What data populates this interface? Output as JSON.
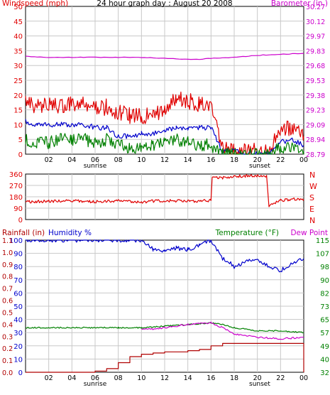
{
  "title": "24 hour graph day : August 20 2008",
  "colors": {
    "wind": "#e00000",
    "wind_avg": "#0000cc",
    "wind_low": "#008000",
    "baro": "#cc00cc",
    "dir": "#e00000",
    "rain": "#b00000",
    "humidity": "#0000cc",
    "temperature": "#008000",
    "dewpoint": "#cc00cc",
    "grid": "#c8c8c8",
    "frame": "#000000"
  },
  "chart_data": [
    {
      "type": "line",
      "id": "wind-baro",
      "title": "24 hour graph day : August 20 2008",
      "left_label": "Windspeed (mph)",
      "right_label": "Barometer (in.)",
      "left_ticks": [
        "50",
        "45",
        "40",
        "35",
        "30",
        "25",
        "20",
        "15",
        "10",
        "5",
        "0"
      ],
      "right_ticks": [
        "30.27",
        "30.12",
        "29.97",
        "29.83",
        "29.68",
        "29.53",
        "29.38",
        "29.23",
        "29.09",
        "28.94",
        "28.79"
      ],
      "x_ticks": [
        "02",
        "04",
        "06",
        "08",
        "10",
        "12",
        "14",
        "16",
        "18",
        "20",
        "22",
        "00"
      ],
      "sun_labels": [
        "sunrise",
        "sunset"
      ],
      "ylim_left": [
        0,
        50
      ],
      "ylim_right": [
        28.79,
        30.27
      ],
      "x_range_hours": [
        0,
        24
      ],
      "series": [
        {
          "id": "barometer",
          "axis": "right",
          "x": [
            0,
            2,
            4,
            6,
            8,
            10,
            12,
            14,
            15,
            16,
            18,
            20,
            22,
            24
          ],
          "y": [
            29.77,
            29.76,
            29.76,
            29.76,
            29.76,
            29.76,
            29.75,
            29.74,
            29.74,
            29.75,
            29.76,
            29.78,
            29.79,
            29.8
          ]
        },
        {
          "id": "windspeed",
          "axis": "left",
          "x": [
            0,
            1,
            2,
            3,
            4,
            5,
            6,
            7,
            8,
            9,
            10,
            11,
            12,
            13,
            14,
            15,
            16,
            17,
            18,
            19,
            20,
            21,
            22,
            23,
            24
          ],
          "y": [
            17,
            16,
            17,
            16,
            17,
            17,
            15,
            16,
            14,
            13,
            13,
            13,
            15,
            19,
            18,
            17,
            16,
            2,
            1,
            1,
            1,
            1,
            8,
            9,
            6
          ]
        },
        {
          "id": "wind_average",
          "axis": "left",
          "x": [
            0,
            1,
            2,
            3,
            4,
            5,
            6,
            7,
            8,
            9,
            10,
            11,
            12,
            13,
            14,
            15,
            16,
            17,
            18,
            19,
            20,
            21,
            22,
            23,
            24
          ],
          "y": [
            11,
            10,
            10,
            10,
            10,
            10,
            9,
            9,
            6,
            6,
            7,
            7,
            8,
            9,
            9,
            9,
            9,
            1,
            1,
            0,
            0,
            0,
            4,
            5,
            3
          ]
        },
        {
          "id": "wind_low",
          "axis": "left",
          "x": [
            0,
            1,
            2,
            3,
            4,
            5,
            6,
            7,
            8,
            9,
            10,
            11,
            12,
            13,
            14,
            15,
            16,
            17,
            18,
            19,
            20,
            21,
            22,
            23,
            24
          ],
          "y": [
            5,
            4,
            4,
            5,
            5,
            5,
            4,
            5,
            3,
            2,
            3,
            3,
            4,
            5,
            4,
            3,
            3,
            0,
            0,
            0,
            0,
            0,
            2,
            2,
            1
          ]
        }
      ]
    },
    {
      "type": "line",
      "id": "direction",
      "y_ticks": [
        "360",
        "270",
        "180",
        "90",
        "0"
      ],
      "compass": [
        "N",
        "W",
        "S",
        "E",
        "N"
      ],
      "ylim": [
        0,
        360
      ],
      "series": [
        {
          "id": "wind_direction",
          "x": [
            0,
            2,
            4,
            6,
            8,
            10,
            12,
            14,
            16,
            16.1,
            17,
            18,
            19,
            20,
            20.8,
            21,
            22,
            23,
            24
          ],
          "y": [
            140,
            145,
            150,
            140,
            150,
            140,
            150,
            145,
            150,
            340,
            330,
            340,
            345,
            345,
            345,
            110,
            150,
            160,
            160
          ]
        }
      ]
    },
    {
      "type": "line",
      "id": "rain-hum-temp",
      "left_label": "Rainfall (in)",
      "humidity_label": "Humidity %",
      "temp_label": "Temperature (°F)",
      "dew_label": "Dew Point",
      "rain_ticks": [
        "1.1",
        "1.0",
        "0.9",
        "0.8",
        "0.7",
        "0.6",
        "0.5",
        "0.4",
        "0.3",
        "0.2",
        "0.1",
        "0.0"
      ],
      "hum_ticks": [
        "100",
        "90",
        "80",
        "70",
        "60",
        "50",
        "40",
        "30",
        "20",
        "10",
        "0"
      ],
      "temp_ticks": [
        "115",
        "107",
        "98",
        "90",
        "82",
        "73",
        "65",
        "57",
        "49",
        "40",
        "32"
      ],
      "x_ticks": [
        "02",
        "04",
        "06",
        "08",
        "10",
        "12",
        "14",
        "16",
        "18",
        "20",
        "22",
        "00"
      ],
      "sun_labels": [
        "sunrise",
        "sunset"
      ],
      "ylim_rain": [
        0,
        1.1
      ],
      "ylim_hum": [
        0,
        100
      ],
      "ylim_temp": [
        32,
        115
      ],
      "series": [
        {
          "id": "humidity",
          "axis": "hum",
          "x": [
            0,
            2,
            4,
            6,
            8,
            10,
            11,
            12,
            13,
            14,
            15,
            16,
            17,
            17.5,
            18,
            19,
            20,
            21,
            22,
            23,
            24
          ],
          "y": [
            100,
            100,
            100,
            100,
            100,
            100,
            93,
            92,
            94,
            93,
            96,
            100,
            86,
            84,
            80,
            84,
            85,
            80,
            77,
            82,
            86
          ]
        },
        {
          "id": "temperature",
          "axis": "temp",
          "x": [
            0,
            2,
            4,
            6,
            8,
            10,
            12,
            14,
            16,
            17,
            18,
            20,
            22,
            24
          ],
          "y": [
            60,
            60,
            60,
            60,
            60,
            60,
            61,
            62,
            63,
            62,
            60,
            58,
            58,
            57
          ]
        },
        {
          "id": "dewpoint",
          "axis": "temp",
          "x": [
            10,
            11,
            12,
            14,
            16,
            17,
            18,
            20,
            22,
            24
          ],
          "y": [
            59,
            59,
            60,
            62,
            63,
            60,
            56,
            54,
            53,
            54
          ]
        },
        {
          "id": "rainfall",
          "axis": "rain",
          "x": [
            0,
            5,
            6,
            7,
            8,
            9,
            10,
            11,
            12,
            13,
            14,
            15,
            16,
            17,
            19,
            22,
            24
          ],
          "y": [
            0,
            0,
            0.01,
            0.03,
            0.08,
            0.13,
            0.15,
            0.16,
            0.17,
            0.17,
            0.18,
            0.19,
            0.22,
            0.24,
            0.24,
            0.24,
            0.24
          ]
        }
      ]
    }
  ]
}
